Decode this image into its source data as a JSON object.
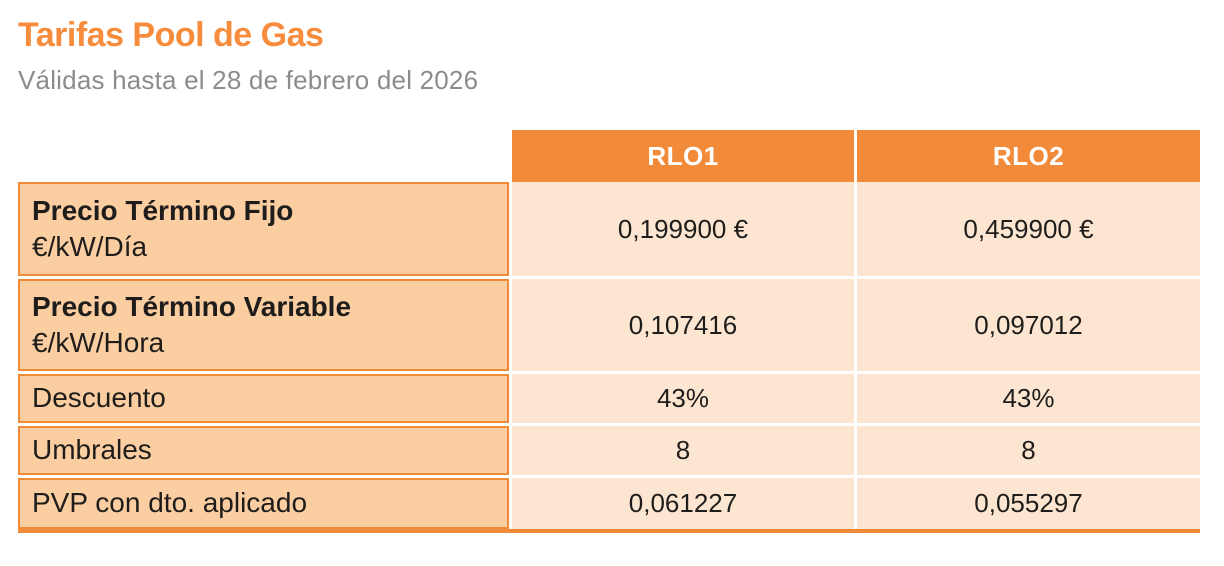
{
  "page": {
    "title": "Tarifas Pool de Gas",
    "subtitle": "Válidas hasta el 28 de febrero del 2026"
  },
  "table": {
    "columns": [
      "RLO1",
      "RLO2"
    ],
    "rows": [
      {
        "label": "Precio Término Fijo",
        "sublabel": "€/kW/Día",
        "values": [
          "0,199900 €",
          "0,459900 €"
        ]
      },
      {
        "label": "Precio Término Variable",
        "sublabel": "€/kW/Hora",
        "values": [
          "0,107416",
          "0,097012"
        ]
      },
      {
        "label": "Descuento",
        "values": [
          "43%",
          "43%"
        ]
      },
      {
        "label": "Umbrales",
        "values": [
          "8",
          "8"
        ]
      },
      {
        "label": "PVP con dto. aplicado",
        "values": [
          "0,061227",
          "0,055297"
        ]
      }
    ]
  },
  "colors": {
    "accent_orange": "#F18A39",
    "title_orange": "#F68C3C",
    "label_cell_bg": "#FBCEA1",
    "value_cell_bg": "#FCE6D1",
    "subtitle_gray": "#8A8C8F",
    "text_dark": "#1F1D1B"
  }
}
